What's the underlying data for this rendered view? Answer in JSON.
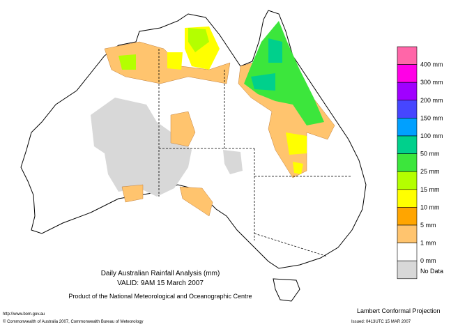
{
  "header": {
    "title": "Daily Australian Rainfall Analysis (mm)",
    "valid": "VALID: 9AM 15 March 2007",
    "product": "Product of the National Meteorological and Oceanographic Centre"
  },
  "footer": {
    "url": "http://www.bom.gov.au",
    "copyright": "© Commonwealth of Australia 2007, Commonwealth Bureau of Meteorology",
    "projection": "Lambert Conformal Projection",
    "issued": "Issued: 0413UTC 15 MAR 2007"
  },
  "legend": {
    "colors": [
      "#ff66a8",
      "#ff00e6",
      "#a000ff",
      "#4646ff",
      "#00a0ff",
      "#00d08c",
      "#3ce63c",
      "#b4ff00",
      "#ffff00",
      "#ffa500",
      "#ffc46e",
      "#ffffff",
      "#d8d8d8"
    ],
    "labels": [
      "400 mm",
      "300 mm",
      "200 mm",
      "150 mm",
      "100 mm",
      "50 mm",
      "25 mm",
      "15 mm",
      "10 mm",
      "5 mm",
      "1 mm",
      "0 mm",
      "No Data"
    ]
  }
}
